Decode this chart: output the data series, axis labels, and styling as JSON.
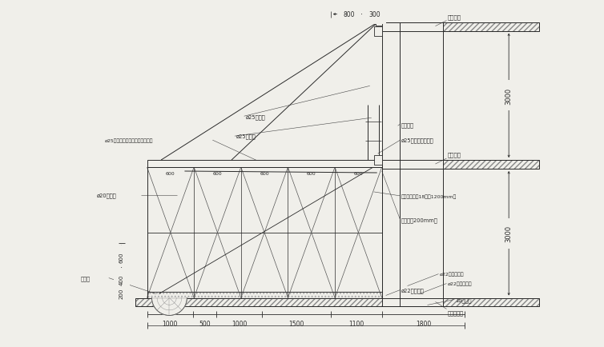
{
  "bg_color": "#f0efea",
  "line_color": "#2a2a2a",
  "fig_w": 7.54,
  "fig_h": 4.35,
  "dpi": 100,
  "labels": {
    "top_beam": "上层架板",
    "upper_beam": "上层架板",
    "install_beam": "安装层架板",
    "flange": "法兰螺丝",
    "ring25": "ø25钢筋预埋成拉环",
    "rope25_1": "ø25钢丝绳",
    "rope25_2": "ø25钢丝绳",
    "weld25": "ø25钢筋焊接在混凝土梁墙成拉环",
    "rope20": "ø20钢丝绳",
    "safety_net": "安全网",
    "fence": "安全栏杆加制18夹板1200mm高",
    "board": "安全挡板200mm高",
    "rebar22a": "ø22钢筋保险量",
    "rebar22b": "ø22钢筋受压量",
    "rebar22c": "ø22钢筋绞固",
    "ibeam": "16工字钢",
    "dim_3000a": "3000",
    "dim_3000b": "3000",
    "dim_800": "800",
    "dim_300": "300",
    "dim_200": "200",
    "dim_400": "400",
    "dim_600": "600",
    "dims_bottom": [
      "1000",
      "500",
      "1000",
      "1500",
      "1100",
      "1800"
    ],
    "spacing": [
      "600",
      "600",
      "600",
      "600",
      "600"
    ]
  }
}
